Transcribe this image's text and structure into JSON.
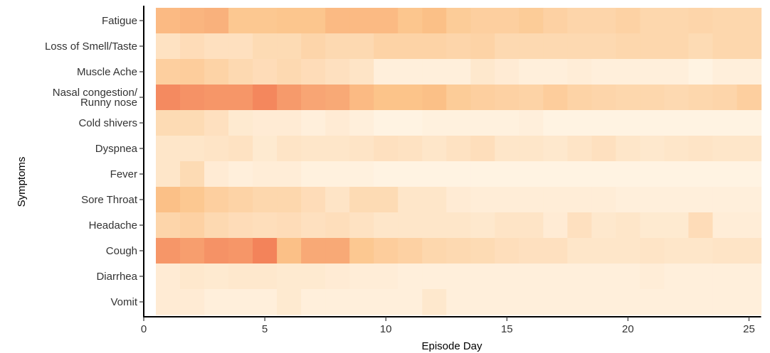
{
  "chart_data": {
    "type": "heatmap",
    "title": "",
    "xlabel": "Episode Day",
    "ylabel": "Symptoms",
    "xlim": [
      0,
      25.5
    ],
    "x_ticks": [
      "0",
      "5",
      "10",
      "15",
      "20",
      "25"
    ],
    "x_tick_values": [
      0,
      5,
      10,
      15,
      20,
      25
    ],
    "days": [
      1,
      2,
      3,
      4,
      5,
      6,
      7,
      8,
      9,
      10,
      11,
      12,
      13,
      14,
      15,
      16,
      17,
      18,
      19,
      20,
      21,
      22,
      23,
      24,
      25
    ],
    "symptoms": [
      [
        "Fatigue"
      ],
      [
        "Loss of Smell/Taste"
      ],
      [
        "Muscle Ache"
      ],
      [
        "Nasal congestion/",
        "Runny nose"
      ],
      [
        "Cold shivers"
      ],
      [
        "Dyspnea"
      ],
      [
        "Fever"
      ],
      [
        "Sore Throat"
      ],
      [
        "Headache"
      ],
      [
        "Cough"
      ],
      [
        "Diarrhea"
      ],
      [
        "Vomit"
      ]
    ],
    "color_scale": {
      "low": "#fff3e2",
      "mid": "#fcc48a",
      "high": "#ef6444"
    },
    "grid": false,
    "legend": "none",
    "values": [
      [
        0.55,
        0.58,
        0.6,
        0.46,
        0.46,
        0.48,
        0.48,
        0.55,
        0.55,
        0.55,
        0.48,
        0.52,
        0.42,
        0.38,
        0.38,
        0.42,
        0.36,
        0.32,
        0.32,
        0.35,
        0.3,
        0.3,
        0.32,
        0.3,
        0.3
      ],
      [
        0.18,
        0.24,
        0.2,
        0.2,
        0.26,
        0.26,
        0.32,
        0.28,
        0.28,
        0.34,
        0.34,
        0.34,
        0.32,
        0.34,
        0.28,
        0.28,
        0.28,
        0.28,
        0.28,
        0.3,
        0.3,
        0.3,
        0.26,
        0.3,
        0.3
      ],
      [
        0.38,
        0.4,
        0.34,
        0.28,
        0.24,
        0.28,
        0.24,
        0.2,
        0.16,
        0.04,
        0.04,
        0.04,
        0.04,
        0.12,
        0.08,
        0.04,
        0.04,
        0.06,
        0.04,
        0.04,
        0.04,
        0.04,
        0.0,
        0.04,
        0.04
      ],
      [
        0.8,
        0.76,
        0.74,
        0.74,
        0.82,
        0.72,
        0.66,
        0.64,
        0.55,
        0.5,
        0.5,
        0.52,
        0.42,
        0.38,
        0.36,
        0.34,
        0.4,
        0.34,
        0.32,
        0.3,
        0.3,
        0.28,
        0.3,
        0.32,
        0.38
      ],
      [
        0.26,
        0.26,
        0.2,
        0.1,
        0.08,
        0.08,
        0.04,
        0.08,
        0.04,
        0.0,
        0.0,
        0.02,
        0.02,
        0.02,
        0.02,
        0.04,
        0.0,
        0.0,
        0.0,
        0.0,
        0.0,
        0.0,
        0.0,
        0.0,
        0.0
      ],
      [
        0.14,
        0.14,
        0.16,
        0.18,
        0.1,
        0.16,
        0.14,
        0.14,
        0.16,
        0.2,
        0.18,
        0.14,
        0.18,
        0.22,
        0.14,
        0.14,
        0.12,
        0.16,
        0.2,
        0.14,
        0.12,
        0.14,
        0.16,
        0.14,
        0.14
      ],
      [
        0.14,
        0.26,
        0.08,
        0.04,
        0.06,
        0.06,
        0.02,
        0.02,
        0.02,
        0.0,
        0.0,
        0.0,
        0.0,
        0.0,
        0.0,
        0.0,
        0.0,
        0.0,
        0.0,
        0.0,
        0.0,
        0.0,
        0.0,
        0.0,
        0.0
      ],
      [
        0.52,
        0.46,
        0.38,
        0.34,
        0.3,
        0.3,
        0.24,
        0.16,
        0.26,
        0.26,
        0.14,
        0.14,
        0.08,
        0.06,
        0.06,
        0.06,
        0.06,
        0.06,
        0.06,
        0.04,
        0.04,
        0.04,
        0.04,
        0.04,
        0.04
      ],
      [
        0.32,
        0.36,
        0.28,
        0.24,
        0.22,
        0.24,
        0.2,
        0.22,
        0.18,
        0.14,
        0.14,
        0.14,
        0.14,
        0.12,
        0.16,
        0.16,
        0.08,
        0.2,
        0.12,
        0.14,
        0.1,
        0.1,
        0.24,
        0.06,
        0.06
      ],
      [
        0.74,
        0.7,
        0.76,
        0.74,
        0.84,
        0.52,
        0.64,
        0.64,
        0.46,
        0.4,
        0.36,
        0.3,
        0.28,
        0.26,
        0.22,
        0.2,
        0.2,
        0.14,
        0.14,
        0.14,
        0.16,
        0.14,
        0.14,
        0.16,
        0.16
      ],
      [
        0.08,
        0.12,
        0.1,
        0.12,
        0.12,
        0.1,
        0.1,
        0.08,
        0.06,
        0.06,
        0.04,
        0.04,
        0.04,
        0.04,
        0.04,
        0.04,
        0.04,
        0.04,
        0.04,
        0.04,
        0.06,
        0.04,
        0.04,
        0.04,
        0.04
      ],
      [
        0.08,
        0.08,
        0.04,
        0.04,
        0.04,
        0.1,
        0.04,
        0.04,
        0.04,
        0.04,
        0.04,
        0.12,
        0.04,
        0.04,
        0.04,
        0.04,
        0.04,
        0.04,
        0.04,
        0.04,
        0.04,
        0.04,
        0.04,
        0.04,
        0.04
      ]
    ]
  }
}
